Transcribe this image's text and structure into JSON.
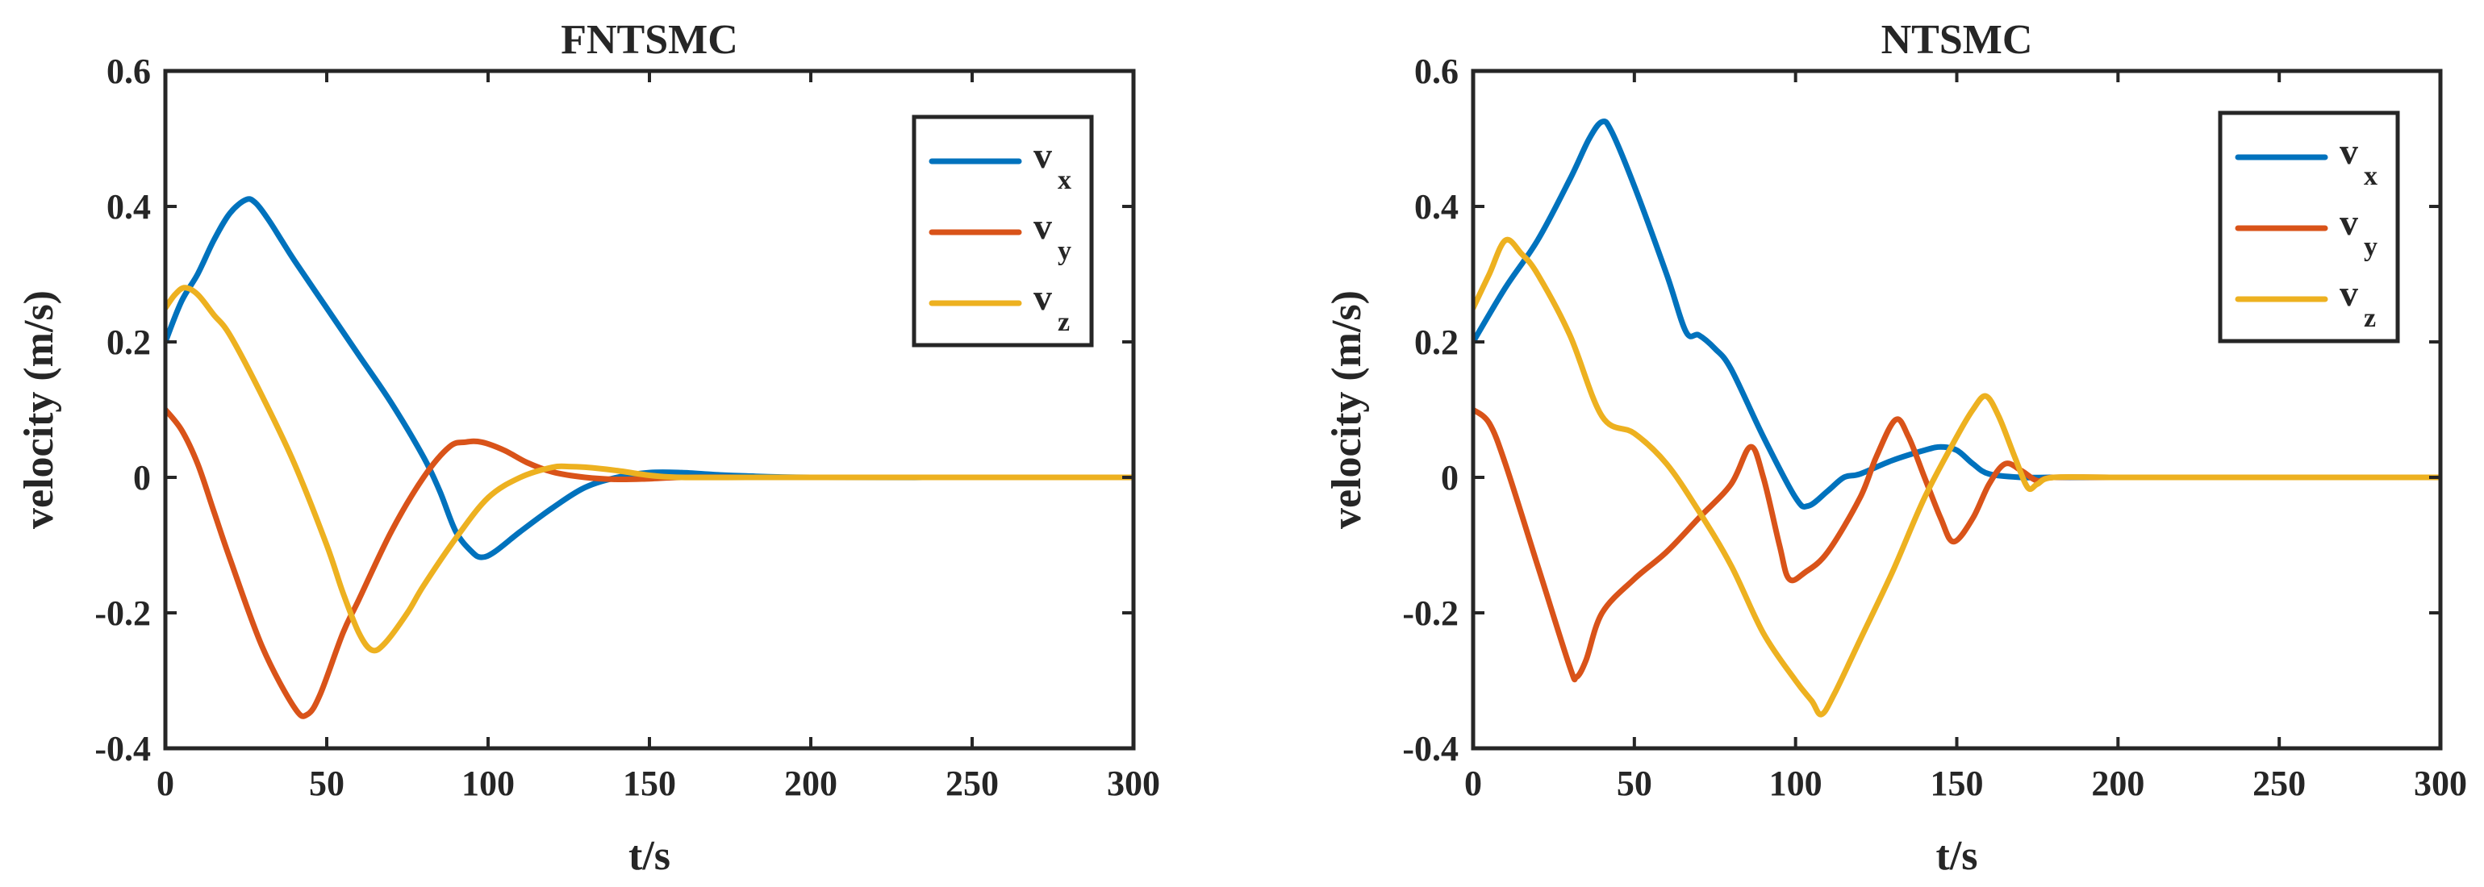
{
  "colors": {
    "vx": "#0072BD",
    "vy": "#D95319",
    "vz": "#EDB120",
    "axis": "#262626"
  },
  "chart_data": [
    {
      "type": "line",
      "title": "FNTSMC",
      "xlabel": "t/s",
      "ylabel": "velocity (m/s)",
      "xlim": [
        0,
        300
      ],
      "ylim": [
        -0.4,
        0.6
      ],
      "xticks": [
        0,
        50,
        100,
        150,
        200,
        250,
        300
      ],
      "yticks": [
        -0.4,
        -0.2,
        0,
        0.2,
        0.4,
        0.6
      ],
      "xtick_labels": [
        "0",
        "50",
        "100",
        "150",
        "200",
        "250",
        "300"
      ],
      "ytick_labels": [
        "-0.4",
        "-0.2",
        "0",
        "0.2",
        "0.4",
        "0.6"
      ],
      "legend": {
        "position": "top-right",
        "entries": [
          {
            "key": "vx",
            "base": "v",
            "sub": "x"
          },
          {
            "key": "vy",
            "base": "v",
            "sub": "y"
          },
          {
            "key": "vz",
            "base": "v",
            "sub": "z"
          }
        ]
      },
      "series": [
        {
          "name": "vx",
          "x": [
            0,
            5,
            10,
            15,
            20,
            25,
            28,
            32,
            36,
            40,
            50,
            60,
            70,
            80,
            85,
            90,
            95,
            98,
            102,
            110,
            120,
            130,
            140,
            150,
            160,
            170,
            180,
            200,
            250,
            300
          ],
          "y": [
            0.2,
            0.26,
            0.3,
            0.35,
            0.39,
            0.41,
            0.405,
            0.38,
            0.35,
            0.32,
            0.25,
            0.18,
            0.11,
            0.03,
            -0.02,
            -0.08,
            -0.11,
            -0.118,
            -0.11,
            -0.08,
            -0.045,
            -0.015,
            0.0,
            0.007,
            0.007,
            0.004,
            0.002,
            0,
            0,
            0
          ]
        },
        {
          "name": "vy",
          "x": [
            0,
            5,
            10,
            15,
            20,
            30,
            40,
            44,
            48,
            55,
            60,
            70,
            80,
            88,
            93,
            98,
            105,
            112,
            120,
            130,
            140,
            150,
            160,
            180,
            200,
            250,
            300
          ],
          "y": [
            0.1,
            0.07,
            0.02,
            -0.05,
            -0.12,
            -0.25,
            -0.34,
            -0.35,
            -0.32,
            -0.23,
            -0.18,
            -0.08,
            0.0,
            0.045,
            0.052,
            0.052,
            0.04,
            0.022,
            0.008,
            0.0,
            -0.003,
            -0.002,
            0,
            0,
            0,
            0,
            0
          ]
        },
        {
          "name": "vz",
          "x": [
            0,
            3,
            6,
            10,
            15,
            20,
            30,
            40,
            50,
            55,
            60,
            64,
            68,
            75,
            80,
            90,
            100,
            110,
            120,
            125,
            130,
            140,
            150,
            160,
            180,
            200,
            250,
            300
          ],
          "y": [
            0.25,
            0.27,
            0.28,
            0.27,
            0.24,
            0.21,
            0.12,
            0.02,
            -0.1,
            -0.17,
            -0.23,
            -0.255,
            -0.245,
            -0.2,
            -0.16,
            -0.09,
            -0.03,
            0.0,
            0.015,
            0.016,
            0.015,
            0.01,
            0.003,
            0,
            0,
            0,
            0,
            0
          ]
        }
      ]
    },
    {
      "type": "line",
      "title": "NTSMC",
      "xlabel": "t/s",
      "ylabel": "velocity (m/s)",
      "xlim": [
        0,
        300
      ],
      "ylim": [
        -0.4,
        0.6
      ],
      "xticks": [
        0,
        50,
        100,
        150,
        200,
        250,
        300
      ],
      "yticks": [
        -0.4,
        -0.2,
        0,
        0.2,
        0.4,
        0.6
      ],
      "xtick_labels": [
        "0",
        "50",
        "100",
        "150",
        "200",
        "250",
        "300"
      ],
      "ytick_labels": [
        "-0.4",
        "-0.2",
        "0",
        "0.2",
        "0.4",
        "0.6"
      ],
      "legend": {
        "position": "top-right",
        "entries": [
          {
            "key": "vx",
            "base": "v",
            "sub": "x"
          },
          {
            "key": "vy",
            "base": "v",
            "sub": "y"
          },
          {
            "key": "vz",
            "base": "v",
            "sub": "z"
          }
        ]
      },
      "series": [
        {
          "name": "vx",
          "x": [
            0,
            10,
            20,
            30,
            36,
            40,
            43,
            50,
            60,
            66,
            70,
            75,
            80,
            90,
            100,
            104,
            110,
            115,
            120,
            130,
            140,
            145,
            150,
            155,
            160,
            170,
            180,
            200,
            250,
            300
          ],
          "y": [
            0.2,
            0.28,
            0.35,
            0.44,
            0.5,
            0.525,
            0.51,
            0.43,
            0.3,
            0.215,
            0.21,
            0.19,
            0.16,
            0.06,
            -0.03,
            -0.042,
            -0.02,
            0.0,
            0.005,
            0.025,
            0.04,
            0.045,
            0.04,
            0.02,
            0.005,
            0.0,
            0.0,
            0,
            0,
            0
          ]
        },
        {
          "name": "vy",
          "x": [
            0,
            5,
            10,
            20,
            30,
            32,
            35,
            40,
            50,
            60,
            70,
            80,
            86,
            90,
            95,
            98,
            103,
            110,
            120,
            125,
            131,
            135,
            140,
            145,
            149,
            155,
            160,
            165,
            170,
            175,
            180,
            200,
            250,
            300
          ],
          "y": [
            0.1,
            0.08,
            0.02,
            -0.13,
            -0.28,
            -0.295,
            -0.27,
            -0.2,
            -0.15,
            -0.11,
            -0.06,
            -0.01,
            0.045,
            0.0,
            -0.1,
            -0.15,
            -0.14,
            -0.11,
            -0.03,
            0.03,
            0.085,
            0.06,
            0.0,
            -0.06,
            -0.095,
            -0.06,
            -0.01,
            0.02,
            0.01,
            -0.005,
            0.0,
            0,
            0,
            0
          ]
        },
        {
          "name": "vz",
          "x": [
            0,
            5,
            10,
            15,
            20,
            30,
            40,
            50,
            60,
            70,
            80,
            90,
            100,
            105,
            108,
            112,
            120,
            130,
            140,
            150,
            155,
            159,
            163,
            168,
            172,
            175,
            180,
            200,
            250,
            300
          ],
          "y": [
            0.25,
            0.3,
            0.35,
            0.33,
            0.3,
            0.21,
            0.09,
            0.065,
            0.02,
            -0.05,
            -0.13,
            -0.23,
            -0.3,
            -0.33,
            -0.35,
            -0.32,
            -0.24,
            -0.14,
            -0.03,
            0.06,
            0.1,
            0.12,
            0.09,
            0.03,
            -0.015,
            -0.01,
            0,
            0,
            0,
            0
          ]
        }
      ]
    }
  ]
}
